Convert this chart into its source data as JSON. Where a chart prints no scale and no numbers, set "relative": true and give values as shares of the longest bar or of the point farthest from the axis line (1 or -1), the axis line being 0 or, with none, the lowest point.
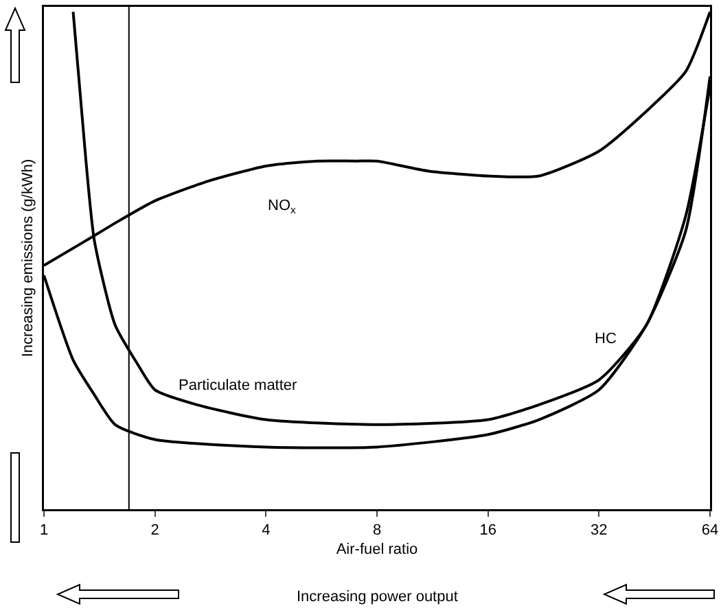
{
  "chart_data": {
    "type": "line",
    "relative": true,
    "xlabel": "Air-fuel ratio",
    "ylabel": "Increasing emissions (g/kWh)",
    "log": "x",
    "xlim": [
      1,
      64
    ],
    "xticks": [
      1,
      2,
      4,
      8,
      16,
      32,
      64
    ],
    "grid": false,
    "legend": false,
    "marker": "none",
    "line_style": "solid",
    "series": [
      {
        "name": "NO$_{x}$",
        "color": "#000000",
        "x": [
          1,
          1.3,
          1.6,
          2,
          2.8,
          4,
          5.5,
          7,
          8,
          11,
          16,
          22,
          32,
          43,
          55,
          64
        ],
        "values": [
          0.49,
          0.54,
          0.58,
          0.62,
          0.66,
          0.69,
          0.7,
          0.7,
          0.7,
          0.68,
          0.67,
          0.67,
          0.72,
          0.8,
          0.88,
          1.0
        ]
      },
      {
        "name": "Particulate matter",
        "color": "#000000",
        "x": [
          1.2,
          1.3,
          1.37,
          1.56,
          1.8,
          2,
          2.6,
          4,
          8,
          16,
          22,
          32,
          43,
          55,
          64
        ],
        "values": [
          1.0,
          0.7,
          0.54,
          0.37,
          0.29,
          0.24,
          0.21,
          0.18,
          0.17,
          0.18,
          0.21,
          0.26,
          0.37,
          0.59,
          0.85
        ]
      },
      {
        "name": "HC",
        "color": "#000000",
        "x": [
          1,
          1.2,
          1.37,
          1.56,
          2,
          4,
          8,
          16,
          22,
          32,
          43,
          55,
          64
        ],
        "values": [
          0.47,
          0.3,
          0.23,
          0.17,
          0.14,
          0.125,
          0.125,
          0.15,
          0.18,
          0.24,
          0.37,
          0.56,
          0.87
        ]
      }
    ],
    "ref_lines": [
      {
        "axis": "x",
        "value": 1.7,
        "color": "#000000"
      }
    ],
    "annotations": [
      "Increasing power output"
    ]
  }
}
